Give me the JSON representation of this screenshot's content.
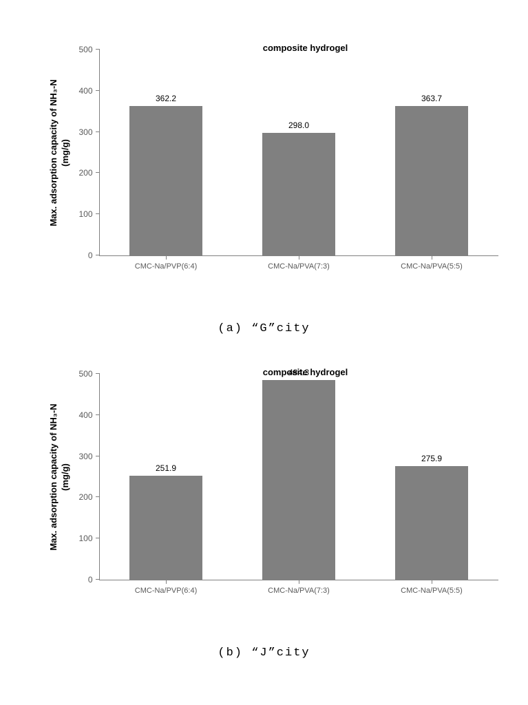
{
  "charts": [
    {
      "type": "bar",
      "ylim": [
        0,
        500
      ],
      "ytick_step": 100,
      "yticks": [
        0,
        100,
        200,
        300,
        400,
        500
      ],
      "ylabel_line1": "Max. adsorption capacity of NH₃-N",
      "ylabel_line2": "(mg/g)",
      "xlabel": "composite hydrogel",
      "categories": [
        "CMC-Na/PVP(6:4)",
        "CMC-Na/PVA(7:3)",
        "CMC-Na/PVA(5:5)"
      ],
      "values": [
        362.2,
        298.0,
        363.7
      ],
      "value_labels": [
        "362.2",
        "298.0",
        "363.7"
      ],
      "bar_color": "#808080",
      "bar_width_pct": 55,
      "tick_color": "#808080",
      "label_color": "#595959",
      "background_color": "#ffffff",
      "caption": "(a) “G”city"
    },
    {
      "type": "bar",
      "ylim": [
        0,
        500
      ],
      "ytick_step": 100,
      "yticks": [
        0,
        100,
        200,
        300,
        400,
        500
      ],
      "ylabel_line1": "Max. adsorption capacity of NH₃-N",
      "ylabel_line2": "(mg/g)",
      "xlabel": "composite hydrogel",
      "categories": [
        "CMC-Na/PVP(6:4)",
        "CMC-Na/PVA(7:3)",
        "CMC-Na/PVA(5:5)"
      ],
      "values": [
        251.9,
        484.3,
        275.9
      ],
      "value_labels": [
        "251.9",
        "484.3",
        "275.9"
      ],
      "bar_color": "#808080",
      "bar_width_pct": 55,
      "tick_color": "#808080",
      "label_color": "#595959",
      "background_color": "#ffffff",
      "caption": "(b) “J”city"
    }
  ]
}
